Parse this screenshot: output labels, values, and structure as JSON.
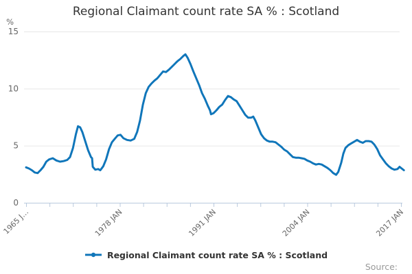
{
  "title": "Regional Claimant count rate SA % : Scotland",
  "source_label": "Source:",
  "legend": {
    "label": "Regional Claimant count rate SA % : Scotland"
  },
  "colors": {
    "line": "#1076ba",
    "grid": "#e6e6e6",
    "axis": "#b9c9dd",
    "tick_text": "#666666",
    "title_text": "#333333",
    "source_text": "#999999"
  },
  "chart_data": {
    "type": "line",
    "title": "Regional Claimant count rate SA % : Scotland",
    "xlabel": "",
    "ylabel": "%",
    "unit": "%",
    "ylim": [
      0,
      15
    ],
    "yticks": [
      0,
      5,
      10,
      15
    ],
    "x_range": [
      1965,
      2017.4
    ],
    "xtick_interval_years": 3.25,
    "xtick_labels": [
      {
        "year": 1965,
        "label": "1965 J…"
      },
      {
        "year": 1978,
        "label": "1978 JAN"
      },
      {
        "year": 1991,
        "label": "1991 JAN"
      },
      {
        "year": 2004,
        "label": "2004 JAN"
      },
      {
        "year": 2017,
        "label": "2017 JAN"
      }
    ],
    "grid": true,
    "legend_position": "bottom",
    "series": [
      {
        "name": "Regional Claimant count rate SA % : Scotland",
        "color": "#1076ba",
        "points": [
          [
            1965.0,
            3.1
          ],
          [
            1965.4,
            3.0
          ],
          [
            1965.8,
            2.85
          ],
          [
            1966.2,
            2.65
          ],
          [
            1966.6,
            2.6
          ],
          [
            1967.0,
            2.85
          ],
          [
            1967.4,
            3.15
          ],
          [
            1967.8,
            3.6
          ],
          [
            1968.2,
            3.8
          ],
          [
            1968.7,
            3.9
          ],
          [
            1969.2,
            3.7
          ],
          [
            1969.7,
            3.6
          ],
          [
            1970.2,
            3.65
          ],
          [
            1970.7,
            3.75
          ],
          [
            1971.1,
            4.0
          ],
          [
            1971.5,
            4.8
          ],
          [
            1971.9,
            6.0
          ],
          [
            1972.2,
            6.7
          ],
          [
            1972.5,
            6.6
          ],
          [
            1972.8,
            6.2
          ],
          [
            1973.2,
            5.4
          ],
          [
            1973.6,
            4.6
          ],
          [
            1974.0,
            4.0
          ],
          [
            1974.15,
            3.9
          ],
          [
            1974.25,
            3.15
          ],
          [
            1974.6,
            2.9
          ],
          [
            1975.0,
            2.95
          ],
          [
            1975.3,
            2.85
          ],
          [
            1975.7,
            3.2
          ],
          [
            1976.1,
            3.8
          ],
          [
            1976.5,
            4.7
          ],
          [
            1976.9,
            5.3
          ],
          [
            1977.3,
            5.6
          ],
          [
            1977.7,
            5.9
          ],
          [
            1978.1,
            5.95
          ],
          [
            1978.5,
            5.65
          ],
          [
            1979.0,
            5.5
          ],
          [
            1979.5,
            5.45
          ],
          [
            1980.0,
            5.6
          ],
          [
            1980.4,
            6.2
          ],
          [
            1980.8,
            7.2
          ],
          [
            1981.2,
            8.6
          ],
          [
            1981.6,
            9.6
          ],
          [
            1982.0,
            10.15
          ],
          [
            1982.4,
            10.45
          ],
          [
            1982.8,
            10.7
          ],
          [
            1983.2,
            10.9
          ],
          [
            1983.6,
            11.2
          ],
          [
            1984.0,
            11.5
          ],
          [
            1984.4,
            11.45
          ],
          [
            1984.8,
            11.65
          ],
          [
            1985.2,
            11.9
          ],
          [
            1985.6,
            12.15
          ],
          [
            1986.0,
            12.4
          ],
          [
            1986.4,
            12.6
          ],
          [
            1986.8,
            12.85
          ],
          [
            1987.1,
            13.0
          ],
          [
            1987.4,
            12.7
          ],
          [
            1987.8,
            12.15
          ],
          [
            1988.2,
            11.5
          ],
          [
            1988.6,
            10.9
          ],
          [
            1989.0,
            10.3
          ],
          [
            1989.4,
            9.6
          ],
          [
            1989.8,
            9.1
          ],
          [
            1990.2,
            8.5
          ],
          [
            1990.5,
            8.1
          ],
          [
            1990.65,
            7.75
          ],
          [
            1991.0,
            7.85
          ],
          [
            1991.4,
            8.1
          ],
          [
            1991.8,
            8.4
          ],
          [
            1992.2,
            8.6
          ],
          [
            1992.6,
            9.0
          ],
          [
            1993.0,
            9.35
          ],
          [
            1993.4,
            9.25
          ],
          [
            1993.8,
            9.05
          ],
          [
            1994.2,
            8.9
          ],
          [
            1994.6,
            8.5
          ],
          [
            1995.0,
            8.1
          ],
          [
            1995.4,
            7.7
          ],
          [
            1995.8,
            7.45
          ],
          [
            1996.2,
            7.45
          ],
          [
            1996.5,
            7.55
          ],
          [
            1996.8,
            7.2
          ],
          [
            1997.2,
            6.6
          ],
          [
            1997.6,
            6.0
          ],
          [
            1998.0,
            5.65
          ],
          [
            1998.4,
            5.45
          ],
          [
            1998.8,
            5.35
          ],
          [
            1999.2,
            5.35
          ],
          [
            1999.6,
            5.3
          ],
          [
            2000.0,
            5.1
          ],
          [
            2000.4,
            4.9
          ],
          [
            2000.8,
            4.65
          ],
          [
            2001.2,
            4.5
          ],
          [
            2001.6,
            4.25
          ],
          [
            2002.0,
            4.0
          ],
          [
            2002.4,
            3.95
          ],
          [
            2002.8,
            3.95
          ],
          [
            2003.2,
            3.9
          ],
          [
            2003.6,
            3.85
          ],
          [
            2004.0,
            3.7
          ],
          [
            2004.4,
            3.6
          ],
          [
            2004.8,
            3.45
          ],
          [
            2005.2,
            3.35
          ],
          [
            2005.6,
            3.4
          ],
          [
            2006.0,
            3.35
          ],
          [
            2006.4,
            3.2
          ],
          [
            2006.8,
            3.05
          ],
          [
            2007.2,
            2.85
          ],
          [
            2007.6,
            2.6
          ],
          [
            2008.0,
            2.45
          ],
          [
            2008.3,
            2.7
          ],
          [
            2008.7,
            3.5
          ],
          [
            2009.0,
            4.3
          ],
          [
            2009.3,
            4.8
          ],
          [
            2009.7,
            5.05
          ],
          [
            2010.1,
            5.2
          ],
          [
            2010.5,
            5.35
          ],
          [
            2010.9,
            5.5
          ],
          [
            2011.3,
            5.35
          ],
          [
            2011.7,
            5.25
          ],
          [
            2012.1,
            5.4
          ],
          [
            2012.5,
            5.4
          ],
          [
            2012.9,
            5.35
          ],
          [
            2013.3,
            5.1
          ],
          [
            2013.7,
            4.7
          ],
          [
            2014.1,
            4.15
          ],
          [
            2014.5,
            3.8
          ],
          [
            2014.9,
            3.45
          ],
          [
            2015.3,
            3.2
          ],
          [
            2015.7,
            3.0
          ],
          [
            2016.1,
            2.9
          ],
          [
            2016.5,
            2.95
          ],
          [
            2016.8,
            3.15
          ],
          [
            2017.1,
            3.0
          ],
          [
            2017.4,
            2.85
          ]
        ]
      }
    ]
  }
}
